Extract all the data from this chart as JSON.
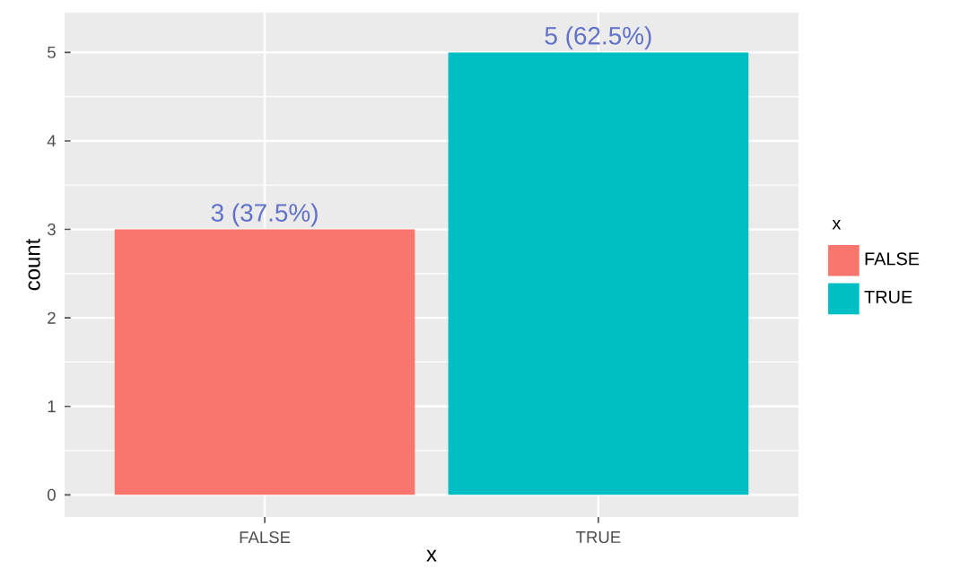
{
  "chart_data": {
    "type": "bar",
    "xlabel": "x",
    "ylabel": "count",
    "legend_title": "x",
    "categories": [
      "FALSE",
      "TRUE"
    ],
    "series": [
      {
        "name": "FALSE",
        "color": "#f8766d",
        "values": [
          3,
          null
        ],
        "value_labels": [
          "3 (37.5%)",
          null
        ]
      },
      {
        "name": "TRUE",
        "color": "#00bfc4",
        "values": [
          null,
          5
        ],
        "value_labels": [
          null,
          "5 (62.5%)"
        ]
      }
    ],
    "ylim": [
      -0.25,
      5.45
    ],
    "yticks": [
      0,
      1,
      2,
      3,
      4,
      5
    ],
    "grid": true,
    "legend": "right"
  }
}
